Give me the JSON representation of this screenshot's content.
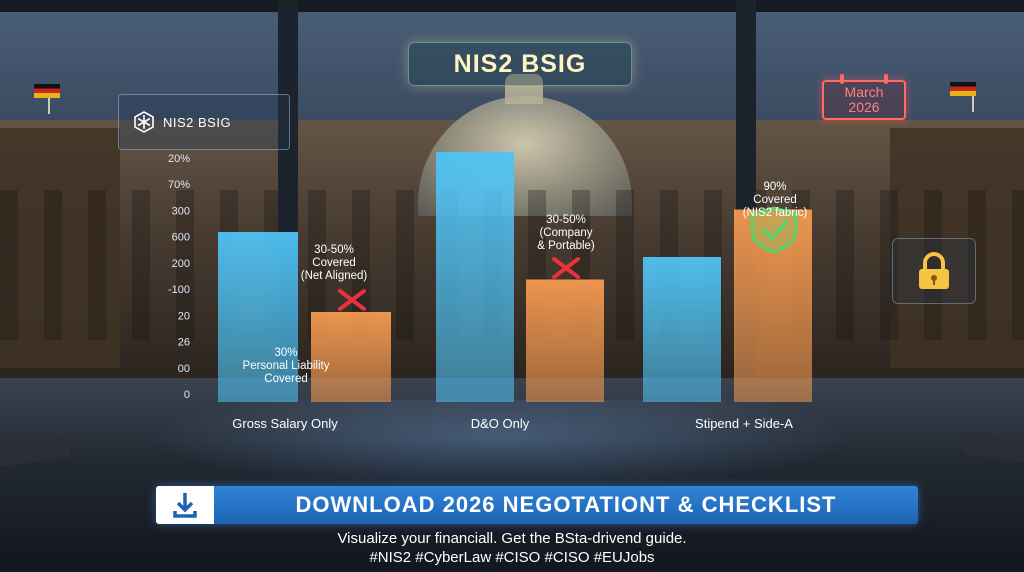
{
  "header": {
    "chip_label": "NIS2 BSIG",
    "title": "NIS2 BSIG",
    "calendar_line1": "March",
    "calendar_line2": "2026"
  },
  "chart_data": {
    "type": "bar",
    "categories": [
      "Gross Salary Only",
      "D&O Only",
      "Stipend + Side-A"
    ],
    "series": [
      {
        "values": [
          68,
          100,
          58
        ]
      },
      {
        "values": [
          36,
          49,
          77
        ]
      }
    ],
    "ytick_labels": [
      "20%",
      "70%",
      "300",
      "600",
      "200",
      "-100",
      "20",
      "26",
      "00",
      "0"
    ],
    "annotations": [
      {
        "lines": [
          "30%",
          "Personal Liability",
          "Covered"
        ]
      },
      {
        "lines": [
          "30-50%",
          "Covered",
          "(Net Aligned)"
        ]
      },
      {
        "lines": [
          "30-50%",
          "(Company",
          "& Portable)"
        ]
      },
      {
        "lines": [
          "90%",
          "Covered",
          "(NIS2 fabric)"
        ]
      }
    ],
    "colors": {
      "blue": "#4fc3f5",
      "orange": "#f59a50",
      "cross": "#e8323c",
      "check": "#52d66a"
    }
  },
  "banner": {
    "label": "DOWNLOAD 2026  NEGOTATIONT & CHECKLIST",
    "icon": "download-arrow-icon"
  },
  "footer": {
    "line1": "Visualize your financiall. Get the BSta-drivend guide.",
    "line2": "#NIS2 #CyberLaw #CISO #CISO #EUJobs"
  }
}
